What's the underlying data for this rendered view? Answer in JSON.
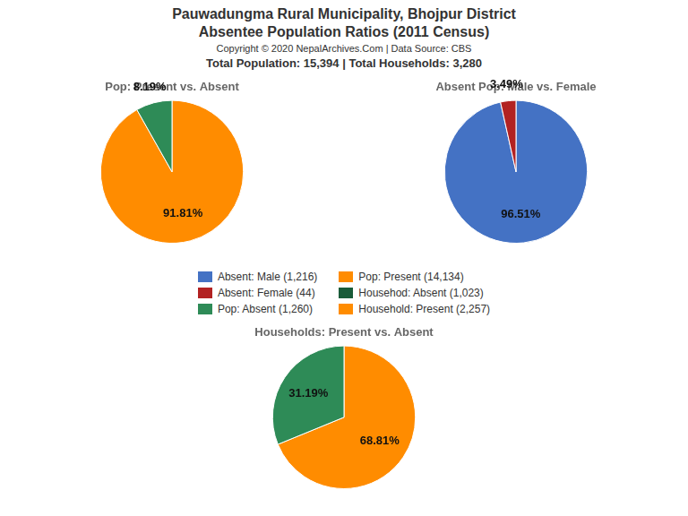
{
  "title": [
    "Pauwadungma Rural Municipality, Bhojpur District",
    "Absentee Population Ratios (2011 Census)"
  ],
  "subtitle": [
    "Copyright © 2020 NepalArchives.Com | Data Source: CBS",
    "Total Population: 15,394 | Total Households: 3,280"
  ],
  "legend_entries": [
    {
      "name": "Absent: Male (1,216)",
      "color": "#4472C4"
    },
    {
      "name": "Absent: Female (44)",
      "color": "#B22222"
    },
    {
      "name": "Pop: Absent (1,260)",
      "color": "#2E8B57"
    },
    {
      "name": "Pop: Present (14,134)",
      "color": "#FF8C00"
    },
    {
      "name": "Househod: Absent (1,023)",
      "color": "#1a5c3a"
    },
    {
      "name": "Household: Present (2,257)",
      "color": "#FF8C00"
    }
  ],
  "chart_data": [
    {
      "type": "pie",
      "title": "Pop: Present vs. Absent",
      "values": [
        91.81,
        8.19
      ],
      "value_labels": [
        "91.81%",
        "8.19%"
      ],
      "colors": [
        "#FF8C00",
        "#2E8B57"
      ],
      "data_labels": true
    },
    {
      "type": "pie",
      "title": "Absent Pop: Male vs. Female",
      "values": [
        96.51,
        3.49
      ],
      "value_labels": [
        "96.51%",
        "3.49%"
      ],
      "colors": [
        "#4472C4",
        "#B22222"
      ],
      "data_labels": true
    },
    {
      "type": "pie",
      "title": "Households: Present vs. Absent",
      "values": [
        68.81,
        31.19
      ],
      "value_labels": [
        "68.81%",
        "31.19%"
      ],
      "colors": [
        "#FF8C00",
        "#2E8B57"
      ],
      "data_labels": true
    }
  ]
}
